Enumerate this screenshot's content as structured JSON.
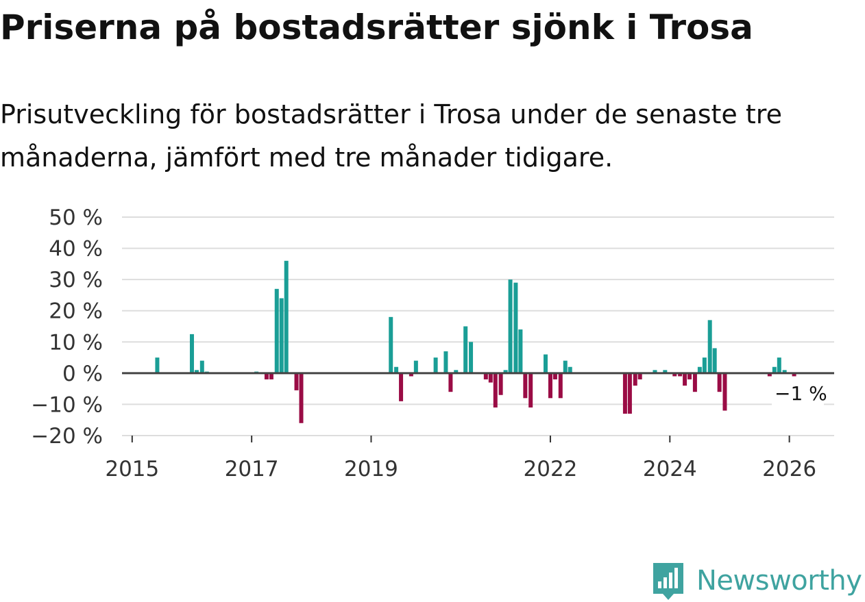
{
  "title": "Priserna på bostadsrätter sjönk i Trosa",
  "subtitle": "Prisutveckling för bostadsrätter i Trosa under de senaste tre månaderna, jämfört med tre månader tidigare.",
  "brand": "Newsworthy",
  "colors": {
    "positive": "#1a9e96",
    "negative": "#9a0c45",
    "grid": "#dddddd",
    "zero_line": "#444444",
    "brand": "#3fa3a0"
  },
  "chart_data": {
    "type": "bar",
    "unit": "%",
    "ylim": [
      -20,
      50
    ],
    "yticks": [
      -20,
      -10,
      0,
      10,
      20,
      30,
      40,
      50
    ],
    "ytick_labels": [
      "−20 %",
      "−10 %",
      "0 %",
      "10 %",
      "20 %",
      "30 %",
      "40 %",
      "50 %"
    ],
    "xticks": [
      2015,
      2017,
      2019,
      2022,
      2024,
      2026
    ],
    "xlim": [
      2014.83,
      2026.75
    ],
    "last_value_label": "−1 %",
    "series": [
      {
        "name": "Prisutveckling",
        "points": [
          {
            "x": 2015.42,
            "y": 5
          },
          {
            "x": 2016.0,
            "y": 12.5
          },
          {
            "x": 2016.08,
            "y": 1
          },
          {
            "x": 2016.17,
            "y": 4
          },
          {
            "x": 2016.25,
            "y": 0.5
          },
          {
            "x": 2017.08,
            "y": 0.5
          },
          {
            "x": 2017.25,
            "y": -2
          },
          {
            "x": 2017.33,
            "y": -2
          },
          {
            "x": 2017.42,
            "y": 27
          },
          {
            "x": 2017.5,
            "y": 24
          },
          {
            "x": 2017.58,
            "y": 36
          },
          {
            "x": 2017.75,
            "y": -5.5
          },
          {
            "x": 2017.83,
            "y": -16
          },
          {
            "x": 2019.33,
            "y": 18
          },
          {
            "x": 2019.42,
            "y": 2
          },
          {
            "x": 2019.5,
            "y": -9
          },
          {
            "x": 2019.67,
            "y": -1
          },
          {
            "x": 2019.75,
            "y": 4
          },
          {
            "x": 2020.08,
            "y": 5
          },
          {
            "x": 2020.25,
            "y": 7
          },
          {
            "x": 2020.33,
            "y": -6
          },
          {
            "x": 2020.42,
            "y": 1
          },
          {
            "x": 2020.58,
            "y": 15
          },
          {
            "x": 2020.67,
            "y": 10
          },
          {
            "x": 2020.92,
            "y": -2
          },
          {
            "x": 2021.0,
            "y": -3
          },
          {
            "x": 2021.08,
            "y": -11
          },
          {
            "x": 2021.17,
            "y": -7
          },
          {
            "x": 2021.25,
            "y": 1
          },
          {
            "x": 2021.33,
            "y": 30
          },
          {
            "x": 2021.42,
            "y": 29
          },
          {
            "x": 2021.5,
            "y": 14
          },
          {
            "x": 2021.58,
            "y": -8
          },
          {
            "x": 2021.67,
            "y": -11
          },
          {
            "x": 2021.92,
            "y": 6
          },
          {
            "x": 2022.0,
            "y": -8
          },
          {
            "x": 2022.08,
            "y": -2
          },
          {
            "x": 2022.17,
            "y": -8
          },
          {
            "x": 2022.25,
            "y": 4
          },
          {
            "x": 2022.33,
            "y": 2
          },
          {
            "x": 2023.25,
            "y": -13
          },
          {
            "x": 2023.33,
            "y": -13
          },
          {
            "x": 2023.42,
            "y": -4
          },
          {
            "x": 2023.5,
            "y": -2
          },
          {
            "x": 2023.75,
            "y": 1
          },
          {
            "x": 2023.92,
            "y": 1
          },
          {
            "x": 2024.08,
            "y": -1
          },
          {
            "x": 2024.17,
            "y": -1
          },
          {
            "x": 2024.25,
            "y": -4
          },
          {
            "x": 2024.33,
            "y": -2
          },
          {
            "x": 2024.42,
            "y": -6
          },
          {
            "x": 2024.5,
            "y": 2
          },
          {
            "x": 2024.58,
            "y": 5
          },
          {
            "x": 2024.67,
            "y": 17
          },
          {
            "x": 2024.75,
            "y": 8
          },
          {
            "x": 2024.83,
            "y": -6
          },
          {
            "x": 2024.92,
            "y": -12
          },
          {
            "x": 2025.67,
            "y": -1
          },
          {
            "x": 2025.75,
            "y": 2
          },
          {
            "x": 2025.83,
            "y": 5
          },
          {
            "x": 2025.92,
            "y": 1
          },
          {
            "x": 2026.08,
            "y": -1
          }
        ]
      }
    ]
  }
}
